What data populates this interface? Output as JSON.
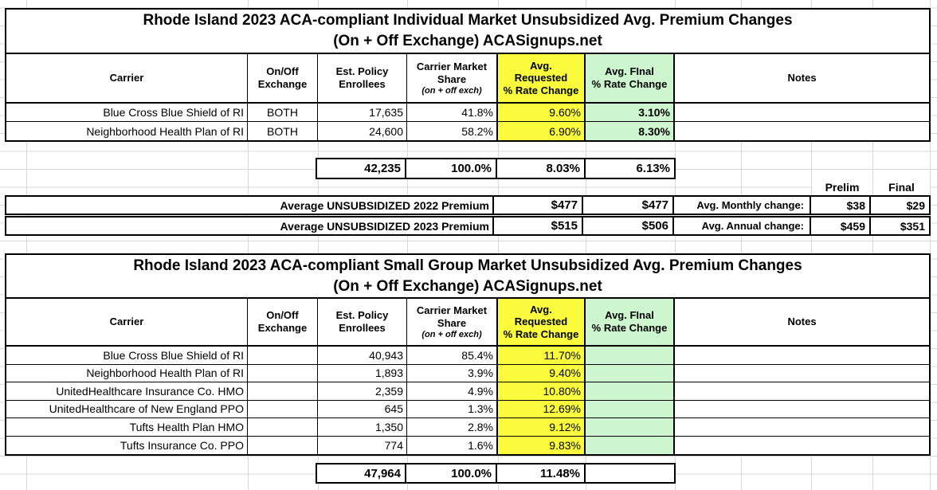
{
  "colors": {
    "yellow": "#FBFB3D",
    "green": "#CDF6CF",
    "gridline": "#D8D8D8",
    "table_border": "#000000"
  },
  "individual": {
    "title_line1": "Rhode Island 2023 ACA-compliant Individual Market Unsubsidized Avg. Premium Changes",
    "title_line2": "(On + Off Exchange) ACASignups.net",
    "headers": {
      "carrier": "Carrier",
      "exchange": "On/Off\nExchange",
      "enrollees": "Est. Policy\nEnrollees",
      "share": "Carrier Market\nShare",
      "share_note": "(on + off exch)",
      "requested": "Avg.\nRequested\n% Rate Change",
      "final": "Avg. FInal\n% Rate Change",
      "notes": "Notes"
    },
    "rows": [
      {
        "carrier": "Blue Cross Blue Shield of RI",
        "exchange": "BOTH",
        "enrollees": "17,635",
        "share": "41.8%",
        "requested": "9.60%",
        "final": "3.10%",
        "notes": ""
      },
      {
        "carrier": "Neighborhood Health Plan of RI",
        "exchange": "BOTH",
        "enrollees": "24,600",
        "share": "58.2%",
        "requested": "6.90%",
        "final": "8.30%",
        "notes": ""
      }
    ],
    "total": {
      "enrollees": "42,235",
      "share": "100.0%",
      "requested": "8.03%",
      "final": "6.13%"
    },
    "summary": {
      "prelim_header": "Prelim",
      "final_header": "Final",
      "rows": [
        {
          "label": "Average UNSUBSIDIZED 2022 Premium",
          "requested": "$477",
          "final": "$477",
          "change_label": "Avg. Monthly change:",
          "prelim": "$38",
          "final_amount": "$29"
        },
        {
          "label": "Average UNSUBSIDIZED 2023 Premium",
          "requested": "$515",
          "final": "$506",
          "change_label": "Avg. Annual change:",
          "prelim": "$459",
          "final_amount": "$351"
        }
      ]
    }
  },
  "small_group": {
    "title_line1": "Rhode Island 2023 ACA-compliant Small Group Market Unsubsidized Avg. Premium Changes",
    "title_line2": "(On + Off Exchange) ACASignups.net",
    "headers": {
      "carrier": "Carrier",
      "exchange": "On/Off\nExchange",
      "enrollees": "Est. Policy\nEnrollees",
      "share": "Carrier Market\nShare",
      "share_note": "(on + off exch)",
      "requested": "Avg.\nRequested\n% Rate Change",
      "final": "Avg. FInal\n% Rate Change",
      "notes": "Notes"
    },
    "rows": [
      {
        "carrier": "Blue Cross Blue Shield of RI",
        "exchange": "",
        "enrollees": "40,943",
        "share": "85.4%",
        "requested": "11.70%",
        "final": "",
        "notes": ""
      },
      {
        "carrier": "Neighborhood Health Plan of RI",
        "exchange": "",
        "enrollees": "1,893",
        "share": "3.9%",
        "requested": "9.40%",
        "final": "",
        "notes": ""
      },
      {
        "carrier": "UnitedHealthcare Insurance Co. HMO",
        "exchange": "",
        "enrollees": "2,359",
        "share": "4.9%",
        "requested": "10.80%",
        "final": "",
        "notes": ""
      },
      {
        "carrier": "UnitedHealthcare of New England PPO",
        "exchange": "",
        "enrollees": "645",
        "share": "1.3%",
        "requested": "12.69%",
        "final": "",
        "notes": ""
      },
      {
        "carrier": "Tufts Health Plan HMO",
        "exchange": "",
        "enrollees": "1,350",
        "share": "2.8%",
        "requested": "9.12%",
        "final": "",
        "notes": ""
      },
      {
        "carrier": "Tufts Insurance Co. PPO",
        "exchange": "",
        "enrollees": "774",
        "share": "1.6%",
        "requested": "9.83%",
        "final": "",
        "notes": ""
      }
    ],
    "total": {
      "enrollees": "47,964",
      "share": "100.0%",
      "requested": "11.48%",
      "final": ""
    }
  }
}
